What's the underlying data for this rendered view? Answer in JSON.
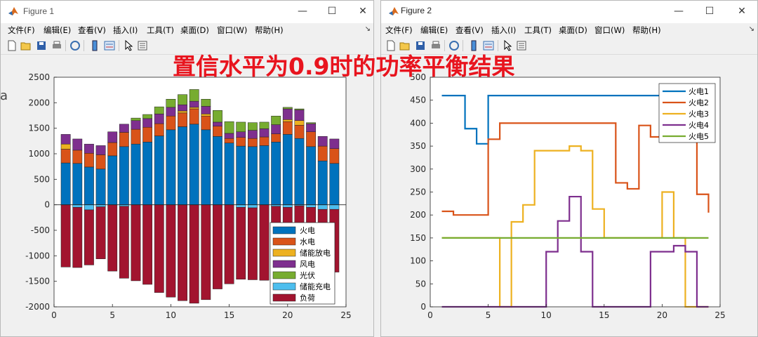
{
  "overlay_title": "置信水平为0.9时的功率平衡结果",
  "edge_fragment": "a",
  "window_controls": {
    "minimize": "—",
    "maximize": "☐",
    "close": "✕"
  },
  "figure1": {
    "title": "Figure 1",
    "menu": [
      "文件(F)",
      "编辑(E)",
      "查看(V)",
      "插入(I)",
      "工具(T)",
      "桌面(D)",
      "窗口(W)",
      "帮助(H)"
    ],
    "toolbar_icons": [
      "new-figure-icon",
      "open-file-icon",
      "save-icon",
      "print-icon",
      "link-plot-icon",
      "insert-colorbar-icon",
      "insert-legend-icon",
      "pointer-icon",
      "property-inspector-icon"
    ]
  },
  "figure2": {
    "title": "Figure 2",
    "menu": [
      "文件(F)",
      "编辑(E)",
      "查看(V)",
      "插入(I)",
      "工具(T)",
      "桌面(D)",
      "窗口(W)",
      "帮助(H)"
    ],
    "toolbar_icons": [
      "new-figure-icon",
      "open-file-icon",
      "save-icon",
      "print-icon",
      "link-plot-icon",
      "insert-colorbar-icon",
      "insert-legend-icon",
      "pointer-icon",
      "property-inspector-icon"
    ]
  },
  "chart_data": [
    {
      "type": "bar",
      "stacked": true,
      "x": [
        1,
        2,
        3,
        4,
        5,
        6,
        7,
        8,
        9,
        10,
        11,
        12,
        13,
        14,
        15,
        16,
        17,
        18,
        19,
        20,
        21,
        22,
        23,
        24
      ],
      "xlim": [
        0,
        25
      ],
      "ylim": [
        -2000,
        2500
      ],
      "xticks": [
        0,
        5,
        10,
        15,
        20,
        25
      ],
      "yticks": [
        -2000,
        -1500,
        -1000,
        -500,
        0,
        500,
        1000,
        1500,
        2000,
        2500
      ],
      "legend_position": "bottom-right",
      "series": [
        {
          "name": "火电",
          "color": "#0072BD",
          "values": [
            820,
            810,
            740,
            700,
            960,
            1140,
            1190,
            1230,
            1350,
            1470,
            1530,
            1580,
            1470,
            1340,
            1210,
            1150,
            1140,
            1160,
            1230,
            1380,
            1300,
            1140,
            860,
            810
          ]
        },
        {
          "name": "水电",
          "color": "#D95319",
          "values": [
            270,
            260,
            270,
            280,
            260,
            280,
            290,
            290,
            240,
            270,
            270,
            300,
            270,
            200,
            90,
            170,
            160,
            170,
            160,
            250,
            260,
            290,
            290,
            290
          ]
        },
        {
          "name": "储能放电",
          "color": "#EDB120",
          "values": [
            100,
            0,
            0,
            0,
            0,
            0,
            0,
            0,
            0,
            0,
            40,
            30,
            40,
            0,
            0,
            0,
            0,
            0,
            0,
            40,
            90,
            0,
            0,
            0
          ]
        },
        {
          "name": "风电",
          "color": "#7E2F8E",
          "values": [
            190,
            220,
            180,
            180,
            210,
            160,
            170,
            170,
            190,
            170,
            120,
            120,
            150,
            80,
            100,
            110,
            160,
            160,
            180,
            210,
            210,
            160,
            190,
            190
          ]
        },
        {
          "name": "光伏",
          "color": "#77AC30",
          "values": [
            0,
            0,
            0,
            0,
            0,
            0,
            50,
            80,
            140,
            160,
            200,
            230,
            140,
            230,
            230,
            190,
            150,
            130,
            170,
            30,
            20,
            20,
            0,
            0
          ]
        },
        {
          "name": "储能充电",
          "color": "#4DBEEE",
          "values": [
            0,
            -50,
            -100,
            -40,
            0,
            -30,
            0,
            0,
            0,
            0,
            0,
            0,
            0,
            0,
            0,
            -50,
            -60,
            0,
            -30,
            -50,
            -20,
            -50,
            -90,
            -90
          ]
        },
        {
          "name": "负荷",
          "color": "#A2142F",
          "values": [
            -1220,
            -1180,
            -1080,
            -1020,
            -1300,
            -1410,
            -1490,
            -1560,
            -1720,
            -1810,
            -1880,
            -1930,
            -1860,
            -1650,
            -1550,
            -1410,
            -1410,
            -1480,
            -1550,
            -1620,
            -1560,
            -1480,
            -1370,
            -1230
          ]
        }
      ]
    },
    {
      "type": "line",
      "step": true,
      "x": [
        1,
        2,
        3,
        4,
        5,
        6,
        7,
        8,
        9,
        10,
        11,
        12,
        13,
        14,
        15,
        16,
        17,
        18,
        19,
        20,
        21,
        22,
        23,
        24
      ],
      "xlim": [
        0,
        25
      ],
      "ylim": [
        0,
        500
      ],
      "xticks": [
        0,
        5,
        10,
        15,
        20,
        25
      ],
      "yticks": [
        0,
        50,
        100,
        150,
        200,
        250,
        300,
        350,
        400,
        450,
        500
      ],
      "legend_position": "top-right",
      "series": [
        {
          "name": "火电1",
          "color": "#0072BD",
          "values": [
            460,
            460,
            388,
            355,
            460,
            460,
            460,
            460,
            460,
            460,
            460,
            460,
            460,
            460,
            460,
            460,
            460,
            460,
            460,
            460,
            460,
            460,
            460,
            460
          ]
        },
        {
          "name": "火电2",
          "color": "#D95319",
          "values": [
            208,
            200,
            200,
            200,
            365,
            400,
            400,
            400,
            400,
            400,
            400,
            400,
            400,
            400,
            400,
            270,
            257,
            395,
            370,
            380,
            390,
            380,
            245,
            205
          ]
        },
        {
          "name": "火电3",
          "color": "#EDB120",
          "values": [
            150,
            150,
            150,
            150,
            150,
            0,
            185,
            222,
            340,
            340,
            340,
            350,
            340,
            213,
            150,
            150,
            150,
            150,
            150,
            250,
            150,
            0,
            0,
            0
          ]
        },
        {
          "name": "火电4",
          "color": "#7E2F8E",
          "values": [
            0,
            0,
            0,
            0,
            0,
            0,
            0,
            0,
            0,
            120,
            187,
            240,
            120,
            0,
            0,
            0,
            0,
            0,
            120,
            120,
            133,
            120,
            0,
            0
          ]
        },
        {
          "name": "火电5",
          "color": "#77AC30",
          "values": [
            150,
            150,
            150,
            150,
            150,
            150,
            150,
            150,
            150,
            150,
            150,
            150,
            150,
            150,
            150,
            150,
            150,
            150,
            150,
            150,
            150,
            150,
            150,
            150
          ]
        }
      ]
    }
  ]
}
